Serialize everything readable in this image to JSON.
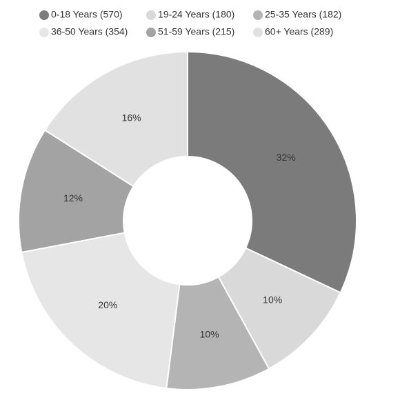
{
  "chart_data": {
    "type": "donut",
    "labels": [
      "0-18 Years (570)",
      "19-24 Years (180)",
      "25-35 Years (182)",
      "36-50 Years (354)",
      "51-59 Years (215)",
      "60+ Years (289)"
    ],
    "values": [
      32,
      10,
      10,
      20,
      12,
      16
    ],
    "value_labels": [
      "32%",
      "10%",
      "10%",
      "20%",
      "12%",
      "16%"
    ],
    "colors": [
      "#7b7b7b",
      "#d9d9d9",
      "#b4b4b4",
      "#e6e6e6",
      "#a3a3a3",
      "#e1e1e1"
    ]
  }
}
